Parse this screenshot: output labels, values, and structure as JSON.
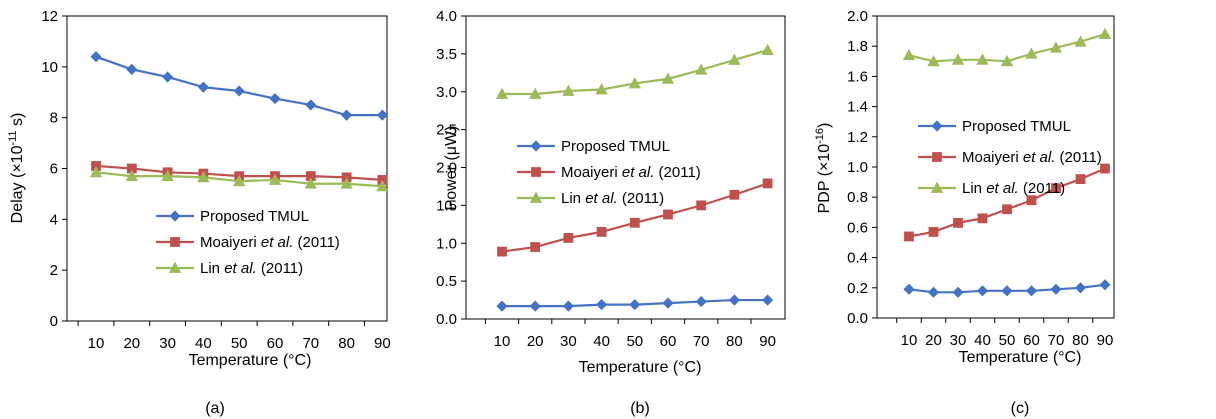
{
  "chart_data": [
    {
      "type": "line",
      "panel_label": "(a)",
      "xlabel": "Temperature (°C)",
      "ylabel_main": "Delay (×10",
      "ylabel_sup": "-11",
      "ylabel_tail": " s)",
      "x": [
        10,
        20,
        30,
        40,
        50,
        60,
        70,
        80,
        90
      ],
      "xticks": [
        "10",
        "20",
        "30",
        "40",
        "50",
        "60",
        "70",
        "80",
        "90"
      ],
      "ylim": [
        0,
        12
      ],
      "yticks": [
        "0",
        "2",
        "4",
        "6",
        "8",
        "10",
        "12"
      ],
      "grid": false,
      "legend": "lower-center",
      "series": [
        {
          "name_pre": "Proposed TMUL",
          "name_it": "",
          "name_post": "",
          "color": "#4472C4",
          "marker": "diamond",
          "values": [
            10.4,
            9.9,
            9.6,
            9.2,
            9.05,
            8.75,
            8.5,
            8.1,
            8.1
          ]
        },
        {
          "name_pre": "Moaiyeri ",
          "name_it": "et al.",
          "name_post": " (2011)",
          "color": "#C0504D",
          "marker": "square",
          "values": [
            6.1,
            6.0,
            5.85,
            5.8,
            5.7,
            5.7,
            5.7,
            5.65,
            5.55
          ]
        },
        {
          "name_pre": "Lin ",
          "name_it": "et al.",
          "name_post": " (2011)",
          "color": "#9BBB59",
          "marker": "triangle",
          "values": [
            5.85,
            5.7,
            5.7,
            5.65,
            5.5,
            5.55,
            5.4,
            5.4,
            5.3
          ]
        }
      ]
    },
    {
      "type": "line",
      "panel_label": "(b)",
      "xlabel": "Temperature (°C)",
      "ylabel_main": "Power (μW)",
      "ylabel_sup": "",
      "ylabel_tail": "",
      "x": [
        10,
        20,
        30,
        40,
        50,
        60,
        70,
        80,
        90
      ],
      "xticks": [
        "10",
        "20",
        "30",
        "40",
        "50",
        "60",
        "70",
        "80",
        "90"
      ],
      "ylim": [
        0,
        4
      ],
      "yticks": [
        "0.0",
        "0.5",
        "1.0",
        "1.5",
        "2.0",
        "2.5",
        "3.0",
        "3.5",
        "4.0"
      ],
      "grid": false,
      "legend": "center",
      "series": [
        {
          "name_pre": "Proposed TMUL",
          "name_it": "",
          "name_post": "",
          "color": "#4472C4",
          "marker": "diamond",
          "values": [
            0.17,
            0.17,
            0.17,
            0.19,
            0.19,
            0.21,
            0.23,
            0.25,
            0.25
          ]
        },
        {
          "name_pre": "Moaiyeri ",
          "name_it": "et al.",
          "name_post": " (2011)",
          "color": "#C0504D",
          "marker": "square",
          "values": [
            0.89,
            0.95,
            1.07,
            1.15,
            1.27,
            1.38,
            1.5,
            1.64,
            1.79
          ]
        },
        {
          "name_pre": "Lin ",
          "name_it": "et al.",
          "name_post": " (2011)",
          "color": "#9BBB59",
          "marker": "triangle",
          "values": [
            2.97,
            2.97,
            3.01,
            3.03,
            3.11,
            3.17,
            3.29,
            3.42,
            3.55
          ]
        }
      ]
    },
    {
      "type": "line",
      "panel_label": "(c)",
      "xlabel": "Temperature (°C)",
      "ylabel_main": "PDP  (×10",
      "ylabel_sup": "-16",
      "ylabel_tail": ")",
      "x": [
        10,
        20,
        30,
        40,
        50,
        60,
        70,
        80,
        90
      ],
      "xticks": [
        "10",
        "20",
        "30",
        "40",
        "50",
        "60",
        "70",
        "80",
        "90"
      ],
      "ylim": [
        0,
        2
      ],
      "yticks": [
        "0.0",
        "0.2",
        "0.4",
        "0.6",
        "0.8",
        "1.0",
        "1.2",
        "1.4",
        "1.6",
        "1.8",
        "2.0"
      ],
      "grid": false,
      "legend": "center",
      "series": [
        {
          "name_pre": "Proposed TMUL",
          "name_it": "",
          "name_post": "",
          "color": "#4472C4",
          "marker": "diamond",
          "values": [
            0.19,
            0.17,
            0.17,
            0.18,
            0.18,
            0.18,
            0.19,
            0.2,
            0.22
          ]
        },
        {
          "name_pre": "Moaiyeri ",
          "name_it": "et al.",
          "name_post": " (2011)",
          "color": "#C0504D",
          "marker": "square",
          "values": [
            0.54,
            0.57,
            0.63,
            0.66,
            0.72,
            0.78,
            0.86,
            0.92,
            0.99
          ]
        },
        {
          "name_pre": "Lin ",
          "name_it": "et al.",
          "name_post": " (2011)",
          "color": "#9BBB59",
          "marker": "triangle",
          "values": [
            1.74,
            1.7,
            1.71,
            1.71,
            1.7,
            1.75,
            1.79,
            1.83,
            1.88
          ]
        }
      ]
    }
  ]
}
